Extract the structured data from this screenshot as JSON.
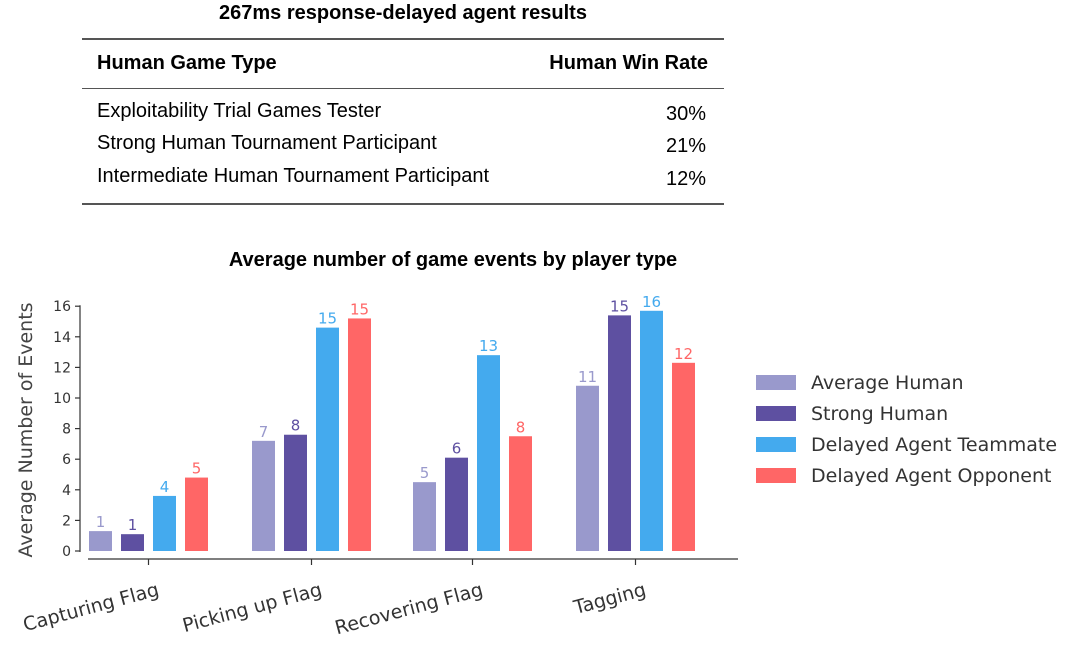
{
  "table": {
    "title": "267ms response-delayed agent results",
    "headers": [
      "Human Game Type",
      "Human Win Rate"
    ],
    "rows": [
      {
        "type": "Exploitability Trial Games Tester",
        "rate": "30%"
      },
      {
        "type": "Strong Human Tournament Participant",
        "rate": "21%"
      },
      {
        "type": "Intermediate Human Tournament Participant",
        "rate": "12%"
      }
    ]
  },
  "chart_data": {
    "type": "bar",
    "title": "Average number of game events by player type",
    "xlabel": "",
    "ylabel": "Average Number of Events",
    "ylim": [
      0,
      16
    ],
    "yticks": [
      0,
      2,
      4,
      6,
      8,
      10,
      12,
      14,
      16
    ],
    "categories": [
      "Capturing Flag",
      "Picking up Flag",
      "Recovering Flag",
      "Tagging"
    ],
    "series": [
      {
        "name": "Average Human",
        "color": "#9999cc",
        "values": [
          1.3,
          7.2,
          4.5,
          10.8
        ],
        "labels": [
          "1",
          "7",
          "5",
          "11"
        ]
      },
      {
        "name": "Strong Human",
        "color": "#5e50a1",
        "values": [
          1.1,
          7.6,
          6.1,
          15.4
        ],
        "labels": [
          "1",
          "8",
          "6",
          "15"
        ]
      },
      {
        "name": "Delayed Agent Teammate",
        "color": "#44aaee",
        "values": [
          3.6,
          14.6,
          12.8,
          15.7
        ],
        "labels": [
          "4",
          "15",
          "13",
          "16"
        ]
      },
      {
        "name": "Delayed Agent Opponent",
        "color": "#ff6666",
        "values": [
          4.8,
          15.2,
          7.5,
          12.3
        ],
        "labels": [
          "5",
          "15",
          "8",
          "12"
        ]
      }
    ],
    "legend_position": "right",
    "grid": false
  }
}
